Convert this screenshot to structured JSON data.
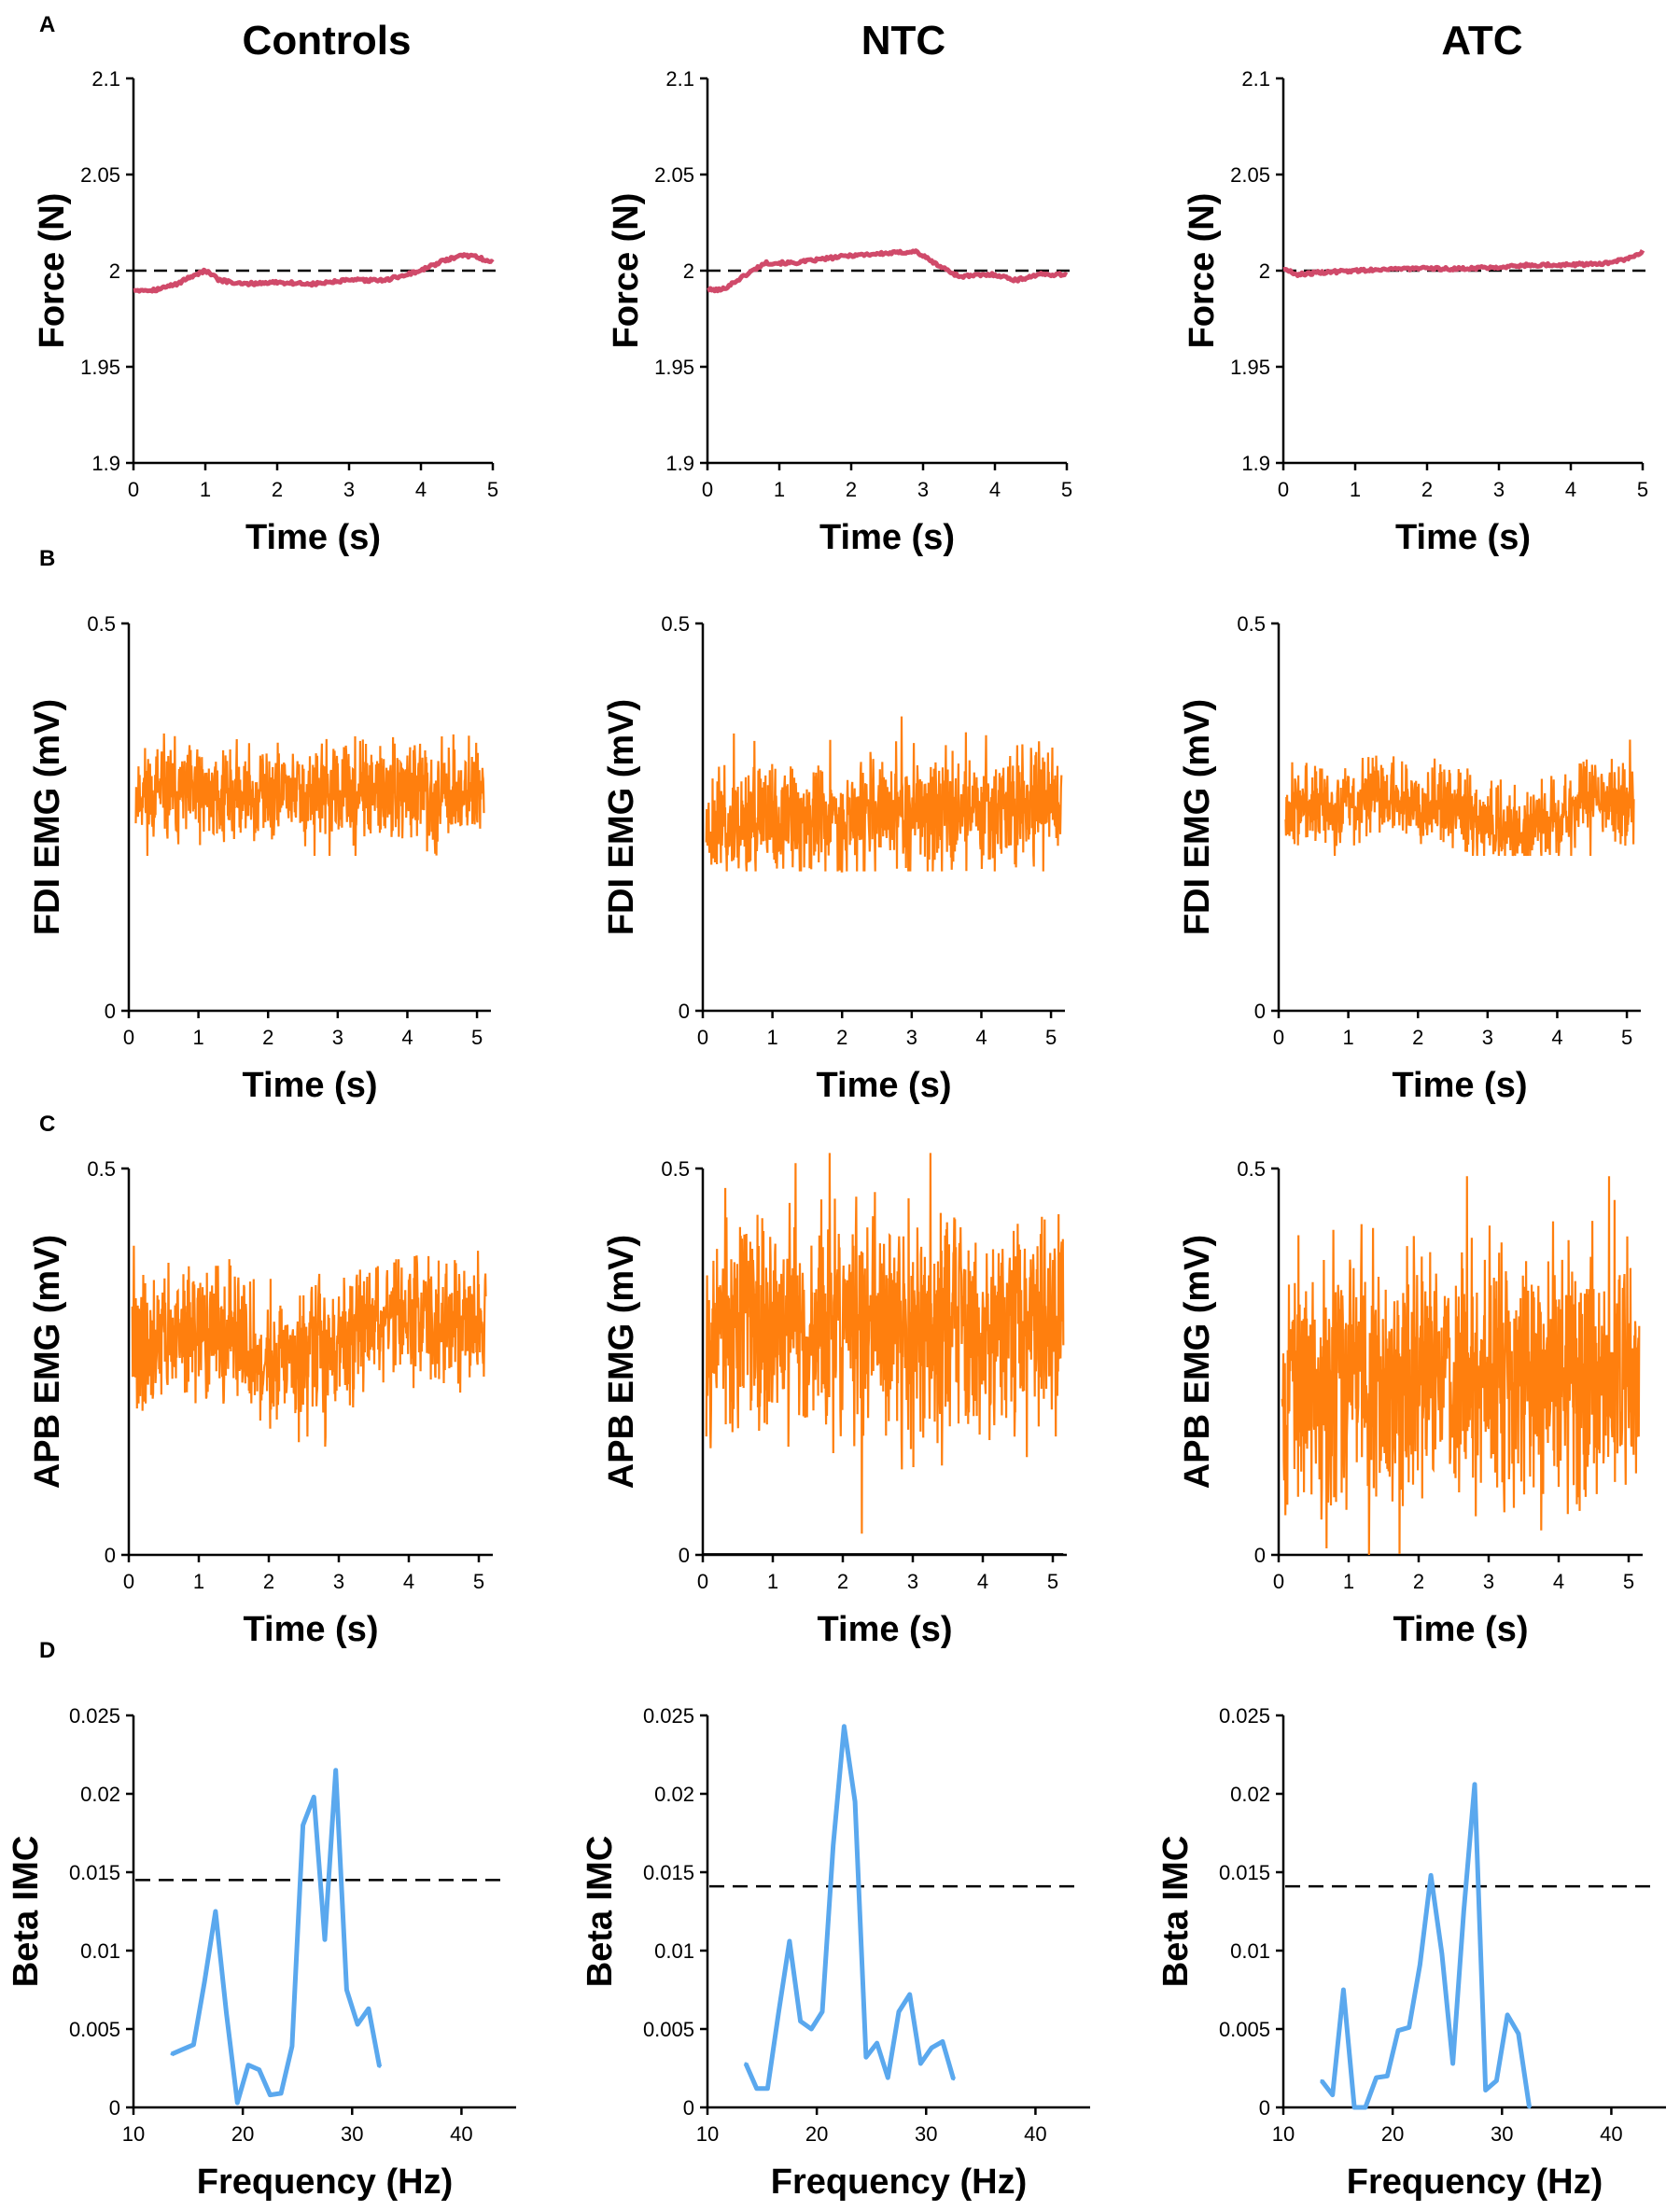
{
  "colors": {
    "force": "#d04a6a",
    "emg": "#ff7f0e",
    "imc": "#5aa8ee",
    "reference": "#000000"
  },
  "column_titles": [
    "Controls",
    "NTC",
    "ATC"
  ],
  "panel_letters": [
    "A",
    "B",
    "C",
    "D"
  ],
  "chart_data": [
    {
      "panel": "A",
      "group": "Controls",
      "type": "line",
      "xlabel": "Time (s)",
      "ylabel": "Force (N)",
      "xlim": [
        0,
        5
      ],
      "ylim": [
        1.9,
        2.1
      ],
      "xticks": [
        0,
        1,
        2,
        3,
        4,
        5
      ],
      "xtick_labels": [
        "0",
        "1",
        "2",
        "3",
        "4",
        "5"
      ],
      "yticks": [
        1.9,
        1.95,
        2,
        2.05,
        2.1
      ],
      "ytick_labels": [
        "1.9",
        "1.95",
        "2",
        "2.05",
        "2.1"
      ],
      "target": 2,
      "series": [
        {
          "name": "force",
          "x": [
            0,
            0.3,
            0.6,
            0.8,
            1.0,
            1.2,
            1.5,
            2.0,
            2.5,
            3.0,
            3.5,
            4.0,
            4.3,
            4.6,
            4.8,
            5.0
          ],
          "y": [
            1.99,
            1.99,
            1.993,
            1.997,
            2.0,
            1.995,
            1.993,
            1.994,
            1.993,
            1.995,
            1.995,
            2.0,
            2.005,
            2.008,
            2.007,
            2.004
          ]
        }
      ]
    },
    {
      "panel": "A",
      "group": "NTC",
      "type": "line",
      "xlabel": "Time (s)",
      "ylabel": "Force (N)",
      "xlim": [
        0,
        5
      ],
      "ylim": [
        1.9,
        2.1
      ],
      "xticks": [
        0,
        1,
        2,
        3,
        4,
        5
      ],
      "xtick_labels": [
        "0",
        "1",
        "2",
        "3",
        "4",
        "5"
      ],
      "yticks": [
        1.9,
        1.95,
        2,
        2.05,
        2.1
      ],
      "ytick_labels": [
        "1.9",
        "1.95",
        "2",
        "2.05",
        "2.1"
      ],
      "target": 2,
      "series": [
        {
          "name": "force",
          "x": [
            0,
            0.2,
            0.5,
            0.8,
            1.2,
            1.6,
            2.0,
            2.5,
            2.9,
            3.2,
            3.5,
            4.0,
            4.3,
            4.6,
            5.0
          ],
          "y": [
            1.99,
            1.99,
            1.997,
            2.004,
            2.004,
            2.006,
            2.008,
            2.009,
            2.01,
            2.003,
            1.997,
            1.998,
            1.995,
            1.998,
            1.998
          ]
        }
      ]
    },
    {
      "panel": "A",
      "group": "ATC",
      "type": "line",
      "xlabel": "Time (s)",
      "ylabel": "Force (N)",
      "xlim": [
        0,
        5
      ],
      "ylim": [
        1.9,
        2.1
      ],
      "xticks": [
        0,
        1,
        2,
        3,
        4,
        5
      ],
      "xtick_labels": [
        "0",
        "1",
        "2",
        "3",
        "4",
        "5"
      ],
      "yticks": [
        1.9,
        1.95,
        2,
        2.05,
        2.1
      ],
      "ytick_labels": [
        "1.9",
        "1.95",
        "2",
        "2.05",
        "2.1"
      ],
      "target": 2,
      "series": [
        {
          "name": "force",
          "x": [
            0,
            0.2,
            0.5,
            1.0,
            1.5,
            2.0,
            2.5,
            3.0,
            3.5,
            4.0,
            4.5,
            4.8,
            5.0
          ],
          "y": [
            2.001,
            1.998,
            1.999,
            2.0,
            2.001,
            2.001,
            2.001,
            2.002,
            2.003,
            2.003,
            2.004,
            2.006,
            2.01
          ]
        }
      ]
    },
    {
      "panel": "B",
      "group": "Controls",
      "type": "line",
      "xlabel": "Time (s)",
      "ylabel": "FDI EMG (mV)",
      "xlim": [
        0,
        5.2
      ],
      "ylim": [
        0,
        0.5
      ],
      "xticks": [
        0,
        1,
        2,
        3,
        4,
        5
      ],
      "xtick_labels": [
        "0",
        "1",
        "2",
        "3",
        "4",
        "5"
      ],
      "yticks": [
        0,
        0.5
      ],
      "ytick_labels": [
        "0",
        "0.5"
      ],
      "series": [
        {
          "name": "FDI EMG",
          "x_range": [
            0.1,
            5.1
          ],
          "baseline_x": [
            0.1,
            1,
            2,
            3,
            4,
            5.1
          ],
          "baseline_y": [
            0.28,
            0.28,
            0.28,
            0.28,
            0.28,
            0.28
          ],
          "spread": 0.03,
          "min": 0.2,
          "max": 0.36,
          "seed": 11
        }
      ]
    },
    {
      "panel": "B",
      "group": "NTC",
      "type": "line",
      "xlabel": "Time (s)",
      "ylabel": "FDI EMG (mV)",
      "xlim": [
        0,
        5.2
      ],
      "ylim": [
        0,
        0.5
      ],
      "xticks": [
        0,
        1,
        2,
        3,
        4,
        5
      ],
      "xtick_labels": [
        "0",
        "1",
        "2",
        "3",
        "4",
        "5"
      ],
      "yticks": [
        0,
        0.5
      ],
      "ytick_labels": [
        "0",
        "0.5"
      ],
      "series": [
        {
          "name": "FDI EMG",
          "x_range": [
            0.05,
            5.15
          ],
          "baseline_x": [
            0.05,
            1,
            2,
            3,
            4,
            5.15
          ],
          "baseline_y": [
            0.24,
            0.245,
            0.25,
            0.255,
            0.265,
            0.27
          ],
          "spread": 0.035,
          "min": 0.18,
          "max": 0.38,
          "seed": 23
        }
      ]
    },
    {
      "panel": "B",
      "group": "ATC",
      "type": "line",
      "xlabel": "Time (s)",
      "ylabel": "FDI EMG (mV)",
      "xlim": [
        0,
        5.2
      ],
      "ylim": [
        0,
        0.5
      ],
      "xticks": [
        0,
        1,
        2,
        3,
        4,
        5
      ],
      "xtick_labels": [
        "0",
        "1",
        "2",
        "3",
        "4",
        "5"
      ],
      "yticks": [
        0,
        0.5
      ],
      "ytick_labels": [
        "0",
        "0.5"
      ],
      "series": [
        {
          "name": "FDI EMG",
          "x_range": [
            0.1,
            5.1
          ],
          "baseline_x": [
            0.1,
            0.8,
            1.5,
            2.2,
            2.8,
            3.4,
            4.0,
            4.5,
            5.1
          ],
          "baseline_y": [
            0.27,
            0.26,
            0.28,
            0.27,
            0.25,
            0.23,
            0.25,
            0.28,
            0.26
          ],
          "spread": 0.025,
          "min": 0.2,
          "max": 0.35,
          "seed": 37
        }
      ]
    },
    {
      "panel": "C",
      "group": "Controls",
      "type": "line",
      "xlabel": "Time (s)",
      "ylabel": "APB EMG (mV)",
      "xlim": [
        0,
        5.2
      ],
      "ylim": [
        0,
        0.5
      ],
      "xticks": [
        0,
        1,
        2,
        3,
        4,
        5
      ],
      "xtick_labels": [
        "0",
        "1",
        "2",
        "3",
        "4",
        "5"
      ],
      "yticks": [
        0,
        0.5
      ],
      "ytick_labels": [
        "0",
        "0.5"
      ],
      "series": [
        {
          "name": "APB EMG",
          "x_range": [
            0.05,
            5.1
          ],
          "baseline_x": [
            0.05,
            0.8,
            1.5,
            2.0,
            2.6,
            3.2,
            4.0,
            5.1
          ],
          "baseline_y": [
            0.27,
            0.29,
            0.28,
            0.24,
            0.26,
            0.29,
            0.31,
            0.3
          ],
          "spread": 0.04,
          "min": 0.11,
          "max": 0.4,
          "seed": 41
        }
      ]
    },
    {
      "panel": "C",
      "group": "NTC",
      "type": "line",
      "xlabel": "Time (s)",
      "ylabel": "APB EMG (mV)",
      "xlim": [
        0,
        5.2
      ],
      "ylim": [
        0,
        0.5
      ],
      "xticks": [
        0,
        1,
        2,
        3,
        4,
        5
      ],
      "xtick_labels": [
        "0",
        "1",
        "2",
        "3",
        "4",
        "5"
      ],
      "yticks": [
        0,
        0.5
      ],
      "ytick_labels": [
        "0",
        "0.5"
      ],
      "series": [
        {
          "name": "APB EMG",
          "x_range": [
            0.05,
            5.15
          ],
          "baseline_x": [
            0.05,
            1,
            2,
            3,
            4,
            5.15
          ],
          "baseline_y": [
            0.3,
            0.3,
            0.3,
            0.3,
            0.3,
            0.3
          ],
          "spread": 0.07,
          "min": 0.0,
          "max": 0.52,
          "seed": 53
        }
      ]
    },
    {
      "panel": "C",
      "group": "ATC",
      "type": "line",
      "xlabel": "Time (s)",
      "ylabel": "APB EMG (mV)",
      "xlim": [
        0,
        5.2
      ],
      "ylim": [
        0,
        0.5
      ],
      "xticks": [
        0,
        1,
        2,
        3,
        4,
        5
      ],
      "xtick_labels": [
        "0",
        "1",
        "2",
        "3",
        "4",
        "5"
      ],
      "yticks": [
        0,
        0.5
      ],
      "ytick_labels": [
        "0",
        "0.5"
      ],
      "series": [
        {
          "name": "APB EMG",
          "x_range": [
            0.05,
            5.15
          ],
          "baseline_x": [
            0.05,
            1,
            2,
            3,
            4,
            5.15
          ],
          "baseline_y": [
            0.23,
            0.23,
            0.23,
            0.23,
            0.23,
            0.23
          ],
          "spread": 0.075,
          "min": 0.0,
          "max": 0.49,
          "seed": 67
        }
      ]
    },
    {
      "panel": "D",
      "group": "Controls",
      "type": "line",
      "xlabel": "Frequency (Hz)",
      "ylabel": "Beta IMC",
      "xlim": [
        10,
        45
      ],
      "ylim": [
        0,
        0.025
      ],
      "xticks": [
        10,
        20,
        30,
        40
      ],
      "xtick_labels": [
        "10",
        "20",
        "30",
        "40"
      ],
      "yticks": [
        0,
        0.005,
        0.01,
        0.015,
        0.02,
        0.025
      ],
      "ytick_labels": [
        "0",
        "0.005",
        "0.01",
        "0.015",
        "0.02",
        "0.025"
      ],
      "threshold": 0.0145,
      "series": [
        {
          "name": "IMC",
          "x": [
            13.5,
            14.5,
            15.5,
            16.5,
            17.5,
            18.5,
            19.5,
            20.5,
            21.5,
            22.5,
            23.5,
            24.5,
            25.5,
            26.5,
            27.5,
            28.5,
            29.5,
            30.5,
            31.5,
            32.5
          ],
          "y": [
            0.0034,
            0.0037,
            0.004,
            0.008,
            0.0125,
            0.006,
            0.0003,
            0.0027,
            0.0024,
            0.0008,
            0.0009,
            0.0039,
            0.018,
            0.0198,
            0.0107,
            0.0215,
            0.0075,
            0.0053,
            0.0063,
            0.0026
          ]
        }
      ]
    },
    {
      "panel": "D",
      "group": "NTC",
      "type": "line",
      "xlabel": "Frequency (Hz)",
      "ylabel": "Beta IMC",
      "xlim": [
        10,
        45
      ],
      "ylim": [
        0,
        0.025
      ],
      "xticks": [
        10,
        20,
        30,
        40
      ],
      "xtick_labels": [
        "10",
        "20",
        "30",
        "40"
      ],
      "yticks": [
        0,
        0.005,
        0.01,
        0.015,
        0.02,
        0.025
      ],
      "ytick_labels": [
        "0",
        "0.005",
        "0.01",
        "0.015",
        "0.02",
        "0.025"
      ],
      "threshold": 0.0141,
      "series": [
        {
          "name": "IMC",
          "x": [
            13.5,
            14.5,
            15.5,
            16.5,
            17.5,
            18.5,
            19.5,
            20.5,
            21.5,
            22.5,
            23.5,
            24.5,
            25.5,
            26.5,
            27.5,
            28.5,
            29.5,
            30.5,
            31.5,
            32.5
          ],
          "y": [
            0.0028,
            0.0012,
            0.0012,
            0.006,
            0.0106,
            0.0055,
            0.005,
            0.0061,
            0.0167,
            0.0243,
            0.0195,
            0.0032,
            0.0041,
            0.0019,
            0.0061,
            0.0072,
            0.0028,
            0.0038,
            0.0042,
            0.0018
          ]
        }
      ]
    },
    {
      "panel": "D",
      "group": "ATC",
      "type": "line",
      "xlabel": "Frequency (Hz)",
      "ylabel": "Beta IMC",
      "xlim": [
        10,
        45
      ],
      "ylim": [
        0,
        0.025
      ],
      "xticks": [
        10,
        20,
        30,
        40
      ],
      "xtick_labels": [
        "10",
        "20",
        "30",
        "40"
      ],
      "yticks": [
        0,
        0.005,
        0.01,
        0.015,
        0.02,
        0.025
      ],
      "ytick_labels": [
        "0",
        "0.005",
        "0.01",
        "0.015",
        "0.02",
        "0.025"
      ],
      "threshold": 0.0141,
      "series": [
        {
          "name": "IMC",
          "x": [
            13.5,
            14.5,
            15.5,
            16.5,
            17.5,
            18.5,
            19.5,
            20.5,
            21.5,
            22.5,
            23.5,
            24.5,
            25.5,
            26.5,
            27.5,
            28.5,
            29.5,
            30.5,
            31.5,
            32.5
          ],
          "y": [
            0.0017,
            0.0008,
            0.0075,
            0.0,
            0.0,
            0.0019,
            0.002,
            0.0049,
            0.0051,
            0.0091,
            0.0148,
            0.0098,
            0.0028,
            0.0125,
            0.0206,
            0.0011,
            0.0017,
            0.0059,
            0.0047,
            0.0
          ]
        }
      ]
    }
  ]
}
